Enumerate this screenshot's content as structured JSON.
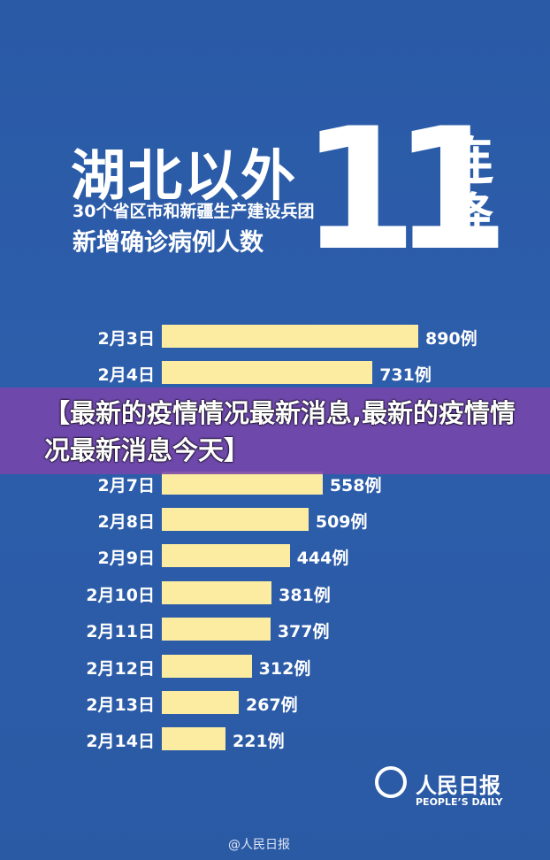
{
  "header": {
    "title": "湖北以外",
    "subtitle": "30个省区市和新疆生产建设兵团",
    "subtitle2": "新增确诊病例人数",
    "big_number": "11",
    "big_label": "连降"
  },
  "chart_data": {
    "type": "bar",
    "orientation": "horizontal",
    "categories": [
      "2月3日",
      "2月4日",
      "2月7日",
      "2月8日",
      "2月9日",
      "2月10日",
      "2月11日",
      "2月12日",
      "2月13日",
      "2月14日"
    ],
    "values": [
      890,
      731,
      558,
      509,
      444,
      381,
      377,
      312,
      267,
      221
    ],
    "value_labels": [
      "890例",
      "731例",
      "558例",
      "509例",
      "444例",
      "381例",
      "377例",
      "312例",
      "267例",
      "221例"
    ],
    "color": "#fbeca2"
  },
  "banner": {
    "text": "【最新的疫情情况最新消息,最新的疫情情况最新消息今天】"
  },
  "logo": {
    "name": "人民日报",
    "english": "PEOPLE’S DAILY"
  },
  "footer": {
    "text": "@人民日报"
  }
}
